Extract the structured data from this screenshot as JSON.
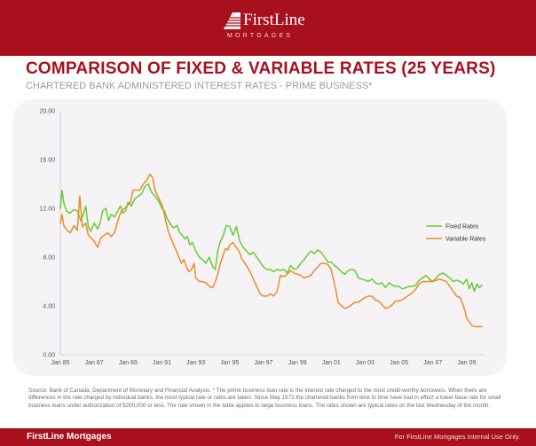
{
  "brand": {
    "name": "FirstLine",
    "tagline": "MORTGAGES"
  },
  "header": {
    "title": "COMPARISON OF FIXED & VARIABLE RATES (25 YEARS)",
    "subtitle": "CHARTERED BANK ADMINISTERED INTEREST RATES - PRIME BUSINESS*"
  },
  "chart_data": {
    "type": "line",
    "title": "COMPARISON OF FIXED & VARIABLE RATES (25 YEARS)",
    "subtitle": "CHARTERED BANK ADMINISTERED INTEREST RATES - PRIME BUSINESS*",
    "xlabel": "",
    "ylabel": "",
    "xlim": [
      1985.0,
      2010.0
    ],
    "ylim": [
      0,
      20
    ],
    "y_ticks": [
      "0.00",
      "4.00",
      "8.00",
      "12.00",
      "16.00",
      "20.00"
    ],
    "x_ticks": [
      {
        "label": "Jan 85",
        "value": 1985
      },
      {
        "label": "Jan 87",
        "value": 1987
      },
      {
        "label": "Jan 89",
        "value": 1989
      },
      {
        "label": "Jan 91",
        "value": 1991
      },
      {
        "label": "Jan 93",
        "value": 1993
      },
      {
        "label": "Jan 95",
        "value": 1995
      },
      {
        "label": "Jan 97",
        "value": 1997
      },
      {
        "label": "Jan 99",
        "value": 1999
      },
      {
        "label": "Jan 01",
        "value": 2001
      },
      {
        "label": "Jan 03",
        "value": 2003
      },
      {
        "label": "Jan 05",
        "value": 2005
      },
      {
        "label": "Jan 07",
        "value": 2007
      },
      {
        "label": "Jan 09",
        "value": 2009
      }
    ],
    "grid": false,
    "legend": "right",
    "colors": {
      "fixed": "#66cc33",
      "variable": "#f08a24"
    },
    "series": [
      {
        "name": "Fixed Rates",
        "x": [
          1985.0,
          1985.1,
          1985.2,
          1985.35,
          1985.55,
          1985.8,
          1986.0,
          1986.2,
          1986.35,
          1986.5,
          1986.65,
          1986.8,
          1987.0,
          1987.2,
          1987.35,
          1987.5,
          1987.7,
          1987.85,
          1988.0,
          1988.2,
          1988.4,
          1988.55,
          1988.7,
          1988.85,
          1989.0,
          1989.2,
          1989.4,
          1989.6,
          1989.8,
          1990.0,
          1990.2,
          1990.4,
          1990.6,
          1990.8,
          1991.0,
          1991.15,
          1991.3,
          1991.5,
          1991.7,
          1991.9,
          1992.05,
          1992.2,
          1992.35,
          1992.5,
          1992.65,
          1992.8,
          1993.0,
          1993.2,
          1993.4,
          1993.6,
          1993.8,
          1994.0,
          1994.15,
          1994.3,
          1994.45,
          1994.6,
          1994.8,
          1995.0,
          1995.2,
          1995.4,
          1995.6,
          1995.8,
          1996.0,
          1996.2,
          1996.4,
          1996.6,
          1996.8,
          1997.0,
          1997.2,
          1997.4,
          1997.6,
          1997.8,
          1998.0,
          1998.2,
          1998.4,
          1998.6,
          1998.8,
          1999.0,
          1999.2,
          1999.4,
          1999.6,
          1999.8,
          2000.0,
          2000.2,
          2000.4,
          2000.6,
          2000.8,
          2001.0,
          2001.2,
          2001.4,
          2001.6,
          2001.8,
          2002.0,
          2002.2,
          2002.4,
          2002.6,
          2002.8,
          2003.0,
          2003.2,
          2003.4,
          2003.6,
          2003.8,
          2004.0,
          2004.2,
          2004.4,
          2004.6,
          2004.8,
          2005.0,
          2005.2,
          2005.4,
          2005.6,
          2005.8,
          2006.0,
          2006.2,
          2006.4,
          2006.6,
          2006.8,
          2007.0,
          2007.2,
          2007.4,
          2007.6,
          2007.8,
          2008.0,
          2008.2,
          2008.4,
          2008.6,
          2008.8,
          2009.0,
          2009.15,
          2009.3,
          2009.45,
          2009.6,
          2009.75,
          2009.9
        ],
        "values": [
          12.0,
          13.5,
          12.5,
          11.8,
          11.6,
          11.9,
          11.8,
          11.0,
          11.5,
          12.2,
          10.5,
          10.1,
          10.8,
          10.3,
          10.8,
          11.8,
          12.0,
          11.0,
          11.5,
          11.3,
          11.8,
          12.2,
          11.6,
          11.8,
          12.5,
          12.2,
          12.8,
          13.0,
          13.2,
          13.8,
          14.0,
          13.3,
          13.0,
          12.6,
          12.0,
          11.8,
          11.2,
          10.7,
          10.4,
          10.6,
          10.0,
          9.8,
          9.5,
          9.7,
          9.0,
          9.2,
          8.5,
          8.0,
          7.8,
          7.5,
          8.0,
          7.2,
          7.0,
          8.5,
          9.3,
          9.7,
          10.6,
          10.5,
          9.8,
          10.5,
          9.3,
          8.8,
          8.5,
          8.2,
          8.4,
          8.0,
          7.6,
          7.2,
          7.0,
          7.0,
          6.8,
          7.0,
          6.9,
          7.0,
          6.7,
          7.3,
          7.0,
          7.1,
          7.5,
          7.8,
          8.2,
          8.5,
          8.3,
          8.6,
          8.4,
          8.0,
          7.6,
          7.6,
          7.3,
          7.1,
          6.8,
          6.6,
          6.9,
          7.0,
          6.9,
          6.3,
          6.2,
          6.1,
          6.0,
          6.2,
          5.9,
          5.8,
          5.9,
          5.5,
          5.9,
          5.7,
          5.6,
          5.6,
          5.4,
          5.5,
          5.6,
          5.6,
          5.7,
          6.1,
          6.3,
          6.5,
          6.2,
          6.0,
          6.3,
          6.6,
          6.7,
          6.5,
          6.3,
          6.0,
          6.1,
          6.0,
          5.8,
          6.2,
          5.4,
          5.9,
          5.2,
          5.8,
          5.5,
          5.7
        ]
      },
      {
        "name": "Variable Rates",
        "x": [
          1985.0,
          1985.1,
          1985.2,
          1985.4,
          1985.6,
          1985.8,
          1986.0,
          1986.15,
          1986.3,
          1986.5,
          1986.65,
          1986.8,
          1987.0,
          1987.2,
          1987.4,
          1987.6,
          1987.8,
          1988.0,
          1988.2,
          1988.4,
          1988.6,
          1988.8,
          1989.0,
          1989.15,
          1989.3,
          1989.5,
          1989.7,
          1989.9,
          1990.1,
          1990.3,
          1990.45,
          1990.6,
          1990.75,
          1990.9,
          1991.0,
          1991.1,
          1991.25,
          1991.4,
          1991.55,
          1991.7,
          1991.85,
          1992.0,
          1992.15,
          1992.3,
          1992.45,
          1992.6,
          1992.75,
          1992.9,
          1993.0,
          1993.2,
          1993.4,
          1993.6,
          1993.8,
          1994.0,
          1994.15,
          1994.3,
          1994.45,
          1994.6,
          1994.75,
          1994.9,
          1995.0,
          1995.2,
          1995.4,
          1995.55,
          1995.7,
          1995.9,
          1996.0,
          1996.2,
          1996.4,
          1996.6,
          1996.8,
          1997.0,
          1997.2,
          1997.4,
          1997.6,
          1997.8,
          1998.0,
          1998.2,
          1998.4,
          1998.6,
          1998.8,
          1999.0,
          1999.2,
          1999.4,
          1999.6,
          1999.8,
          2000.0,
          2000.2,
          2000.4,
          2000.6,
          2000.8,
          2001.0,
          2001.1,
          2001.2,
          2001.3,
          2001.4,
          2001.6,
          2001.8,
          2002.0,
          2002.2,
          2002.4,
          2002.6,
          2002.8,
          2003.0,
          2003.2,
          2003.4,
          2003.6,
          2003.8,
          2004.0,
          2004.2,
          2004.4,
          2004.6,
          2004.8,
          2005.0,
          2005.2,
          2005.4,
          2005.6,
          2005.8,
          2006.0,
          2006.2,
          2006.4,
          2006.6,
          2006.8,
          2007.0,
          2007.2,
          2007.4,
          2007.6,
          2007.8,
          2008.0,
          2008.2,
          2008.4,
          2008.6,
          2008.75,
          2008.9,
          2009.0,
          2009.1,
          2009.3,
          2009.5,
          2009.7,
          2009.9
        ],
        "values": [
          10.8,
          11.5,
          10.6,
          10.2,
          10.0,
          10.6,
          10.2,
          13.0,
          10.5,
          10.8,
          9.8,
          9.6,
          9.3,
          8.8,
          9.6,
          9.8,
          10.0,
          9.7,
          10.0,
          11.0,
          11.8,
          12.0,
          12.3,
          12.5,
          13.5,
          13.5,
          13.5,
          14.0,
          14.3,
          14.8,
          14.5,
          13.5,
          13.0,
          12.6,
          12.3,
          11.8,
          10.8,
          10.0,
          9.5,
          9.0,
          8.5,
          8.0,
          7.5,
          7.8,
          7.2,
          6.8,
          7.0,
          7.5,
          6.3,
          6.0,
          6.0,
          5.9,
          5.6,
          5.5,
          6.0,
          6.6,
          7.5,
          8.1,
          8.7,
          8.6,
          9.0,
          9.2,
          8.8,
          8.5,
          7.9,
          7.5,
          7.3,
          6.8,
          6.2,
          5.6,
          5.0,
          4.8,
          4.8,
          5.0,
          4.8,
          5.2,
          6.5,
          6.4,
          6.6,
          6.9,
          6.7,
          6.6,
          6.5,
          6.3,
          6.4,
          6.5,
          6.9,
          7.2,
          7.5,
          7.5,
          7.4,
          7.0,
          6.3,
          5.8,
          5.1,
          4.3,
          4.0,
          3.8,
          3.9,
          4.1,
          4.3,
          4.3,
          4.5,
          4.7,
          4.8,
          4.8,
          4.5,
          4.4,
          4.1,
          3.8,
          3.9,
          4.1,
          4.4,
          4.4,
          4.5,
          4.7,
          4.9,
          5.1,
          5.4,
          5.8,
          6.0,
          6.0,
          6.0,
          6.0,
          6.1,
          6.2,
          6.1,
          6.0,
          5.6,
          5.2,
          4.8,
          4.7,
          4.2,
          3.6,
          3.0,
          2.8,
          2.4,
          2.3,
          2.3,
          2.3
        ]
      }
    ]
  },
  "source_note": "Source: Bank of Canada, Department of Monetary and Financial Analysis. * The prime business loan rate is the interest rate charged to the most credit-worthy borrowers. When there are differences in the rate charged by individual banks, the most typical rate or rates are taken. Since May 1973 the chartered banks from time to time have had in effect a lower base rate for small business loans under authorization of $200,000 or less. The rate shown in the table applies to large business loans. The rates shown are typical rates on the last Wednesday of the month.",
  "footer": {
    "left": "FirstLine Mortgages",
    "right": "For FirstLine Mortgages Internal Use Only."
  }
}
